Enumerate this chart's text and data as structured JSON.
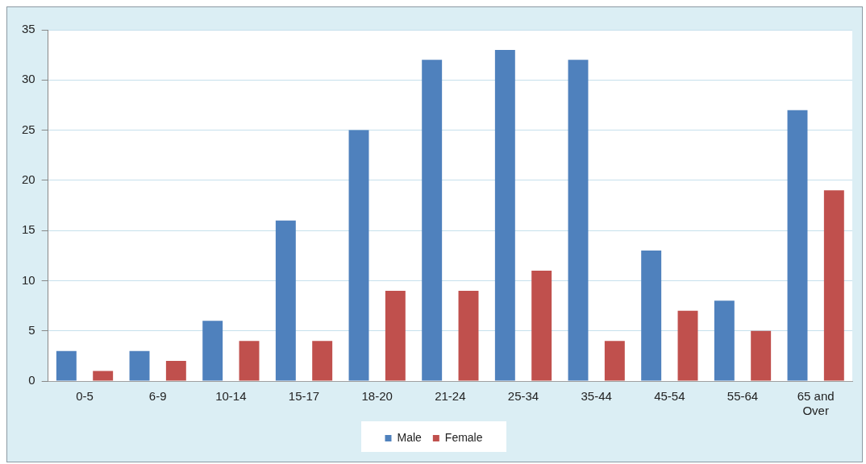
{
  "chart_data": {
    "type": "bar",
    "categories": [
      "0-5",
      "6-9",
      "10-14",
      "15-17",
      "18-20",
      "21-24",
      "25-34",
      "35-44",
      "45-54",
      "55-64",
      "65 and Over"
    ],
    "series": [
      {
        "name": "Male",
        "color": "#4f81bd",
        "values": [
          3,
          3,
          6,
          16,
          25,
          32,
          33,
          32,
          13,
          8,
          27
        ]
      },
      {
        "name": "Female",
        "color": "#c0504d",
        "values": [
          1,
          2,
          4,
          4,
          9,
          9,
          11,
          4,
          7,
          5,
          19
        ]
      }
    ],
    "ylim": [
      0,
      35
    ],
    "yticks": [
      0,
      5,
      10,
      15,
      20,
      25,
      30,
      35
    ],
    "grid": "y",
    "legend": "bottom"
  }
}
